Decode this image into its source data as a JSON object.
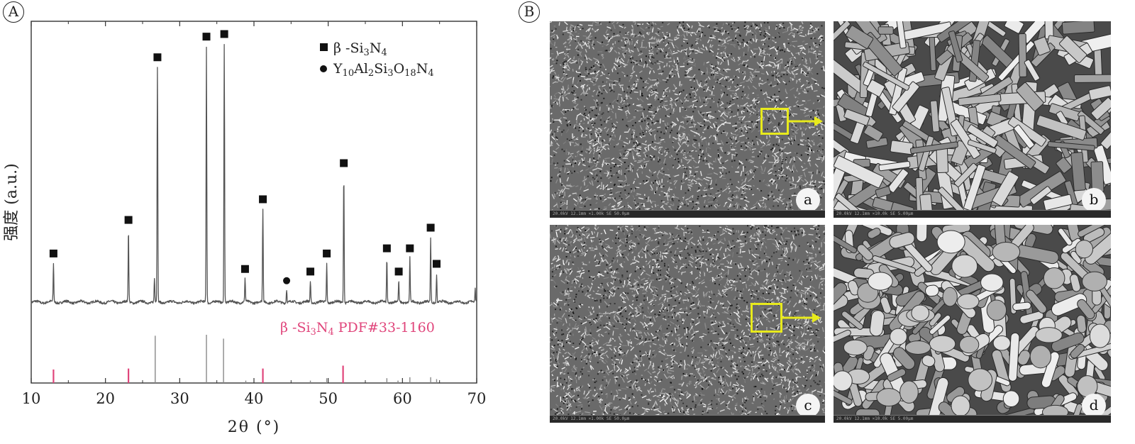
{
  "panel_a": {
    "letter": "A"
  },
  "panel_b": {
    "letter": "B"
  },
  "chart_data": {
    "type": "line",
    "title": "",
    "xlabel": "2θ (°)",
    "ylabel": "强度 (a.u.)",
    "xlim": [
      10,
      70
    ],
    "xticks": [
      10,
      20,
      30,
      40,
      50,
      60,
      70
    ],
    "grid": false,
    "legend": {
      "position": "top-right",
      "entries": [
        {
          "marker": "square",
          "label_parts": [
            "β -Si",
            "3",
            "N",
            "4"
          ]
        },
        {
          "marker": "circle",
          "label_parts": [
            "Y",
            "10",
            "Al",
            "2",
            "Si",
            "3",
            "O",
            "18",
            "N",
            "4"
          ]
        }
      ]
    },
    "series": [
      {
        "peaks": [
          {
            "x": 13.0,
            "y": 0.15,
            "phase": "square"
          },
          {
            "x": 23.1,
            "y": 0.28,
            "phase": "square"
          },
          {
            "x": 26.6,
            "y": 0.09,
            "phase": "none"
          },
          {
            "x": 27.0,
            "y": 0.91,
            "phase": "square"
          },
          {
            "x": 33.6,
            "y": 0.99,
            "phase": "square"
          },
          {
            "x": 36.0,
            "y": 1.0,
            "phase": "square"
          },
          {
            "x": 38.8,
            "y": 0.09,
            "phase": "square"
          },
          {
            "x": 41.2,
            "y": 0.36,
            "phase": "square"
          },
          {
            "x": 44.4,
            "y": 0.05,
            "phase": "circle"
          },
          {
            "x": 47.6,
            "y": 0.08,
            "phase": "square"
          },
          {
            "x": 49.8,
            "y": 0.15,
            "phase": "square"
          },
          {
            "x": 52.1,
            "y": 0.5,
            "phase": "square"
          },
          {
            "x": 57.9,
            "y": 0.17,
            "phase": "square"
          },
          {
            "x": 59.5,
            "y": 0.08,
            "phase": "square"
          },
          {
            "x": 61.0,
            "y": 0.17,
            "phase": "square"
          },
          {
            "x": 63.8,
            "y": 0.25,
            "phase": "square"
          },
          {
            "x": 64.6,
            "y": 0.11,
            "phase": "square"
          },
          {
            "x": 69.8,
            "y": 0.05,
            "phase": "none"
          }
        ]
      }
    ],
    "reference": {
      "label_parts": [
        "β -Si",
        "3",
        "N",
        "4",
        " PDF#33-1160"
      ],
      "color": "#e0457b",
      "lines": [
        {
          "x": 13.0,
          "y": 0.28,
          "color": "#e0457b"
        },
        {
          "x": 23.1,
          "y": 0.3,
          "color": "#e0457b"
        },
        {
          "x": 26.7,
          "y": 0.98,
          "color": "#888888"
        },
        {
          "x": 33.6,
          "y": 1.0,
          "color": "#888888"
        },
        {
          "x": 35.9,
          "y": 0.92,
          "color": "#888888"
        },
        {
          "x": 38.9,
          "y": 0.05,
          "color": "#888888"
        },
        {
          "x": 41.2,
          "y": 0.3,
          "color": "#e0457b"
        },
        {
          "x": 47.6,
          "y": 0.05,
          "color": "#888888"
        },
        {
          "x": 49.8,
          "y": 0.1,
          "color": "#888888"
        },
        {
          "x": 52.0,
          "y": 0.36,
          "color": "#e0457b"
        },
        {
          "x": 57.9,
          "y": 0.1,
          "color": "#888888"
        },
        {
          "x": 59.4,
          "y": 0.05,
          "color": "#888888"
        },
        {
          "x": 61.0,
          "y": 0.12,
          "color": "#888888"
        },
        {
          "x": 63.8,
          "y": 0.12,
          "color": "#888888"
        },
        {
          "x": 64.6,
          "y": 0.08,
          "color": "#888888"
        }
      ]
    }
  },
  "sem_images": [
    {
      "id": "a",
      "label": "a",
      "scale": "coarse",
      "zoom_source": true,
      "bar": "20.0kV  12.1mm  ×1.00k  SE  50.0µm"
    },
    {
      "id": "b",
      "label": "b",
      "scale": "fine",
      "zoom_source": false,
      "bar": "20.0kV  12.1mm  ×10.0k  SE  5.00µm"
    },
    {
      "id": "c",
      "label": "c",
      "scale": "coarse",
      "zoom_source": true,
      "bar": "20.0kV  12.1mm  ×1.00k  SE  50.0µm"
    },
    {
      "id": "d",
      "label": "d",
      "scale": "fine",
      "zoom_source": false,
      "bar": "20.0kV  12.1mm  ×10.0k  SE  5.00µm"
    }
  ],
  "colors": {
    "pattern_line": "#555555",
    "axis": "#333333",
    "zoom_box": "#e8ea1c"
  }
}
